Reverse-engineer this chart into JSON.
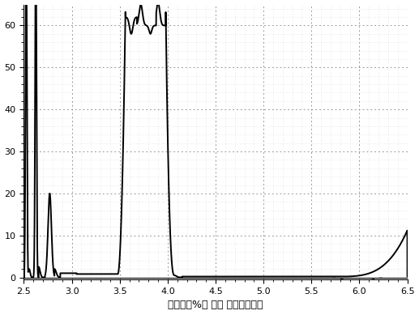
{
  "title": "",
  "xlabel": "透过率（%） 对应 波长（微米）",
  "ylabel": "",
  "xlim": [
    2.5,
    6.5
  ],
  "ylim": [
    -0.5,
    65.0
  ],
  "xticks": [
    2.5,
    3.0,
    3.5,
    4.0,
    4.5,
    5.0,
    5.5,
    6.0,
    6.5
  ],
  "yticks": [
    0.0,
    10.0,
    20.0,
    30.0,
    40.0,
    50.0,
    60.0
  ],
  "background_color": "#ffffff",
  "grid_color": "#999999",
  "line_color": "#000000",
  "dotted_line_color": "#555555"
}
